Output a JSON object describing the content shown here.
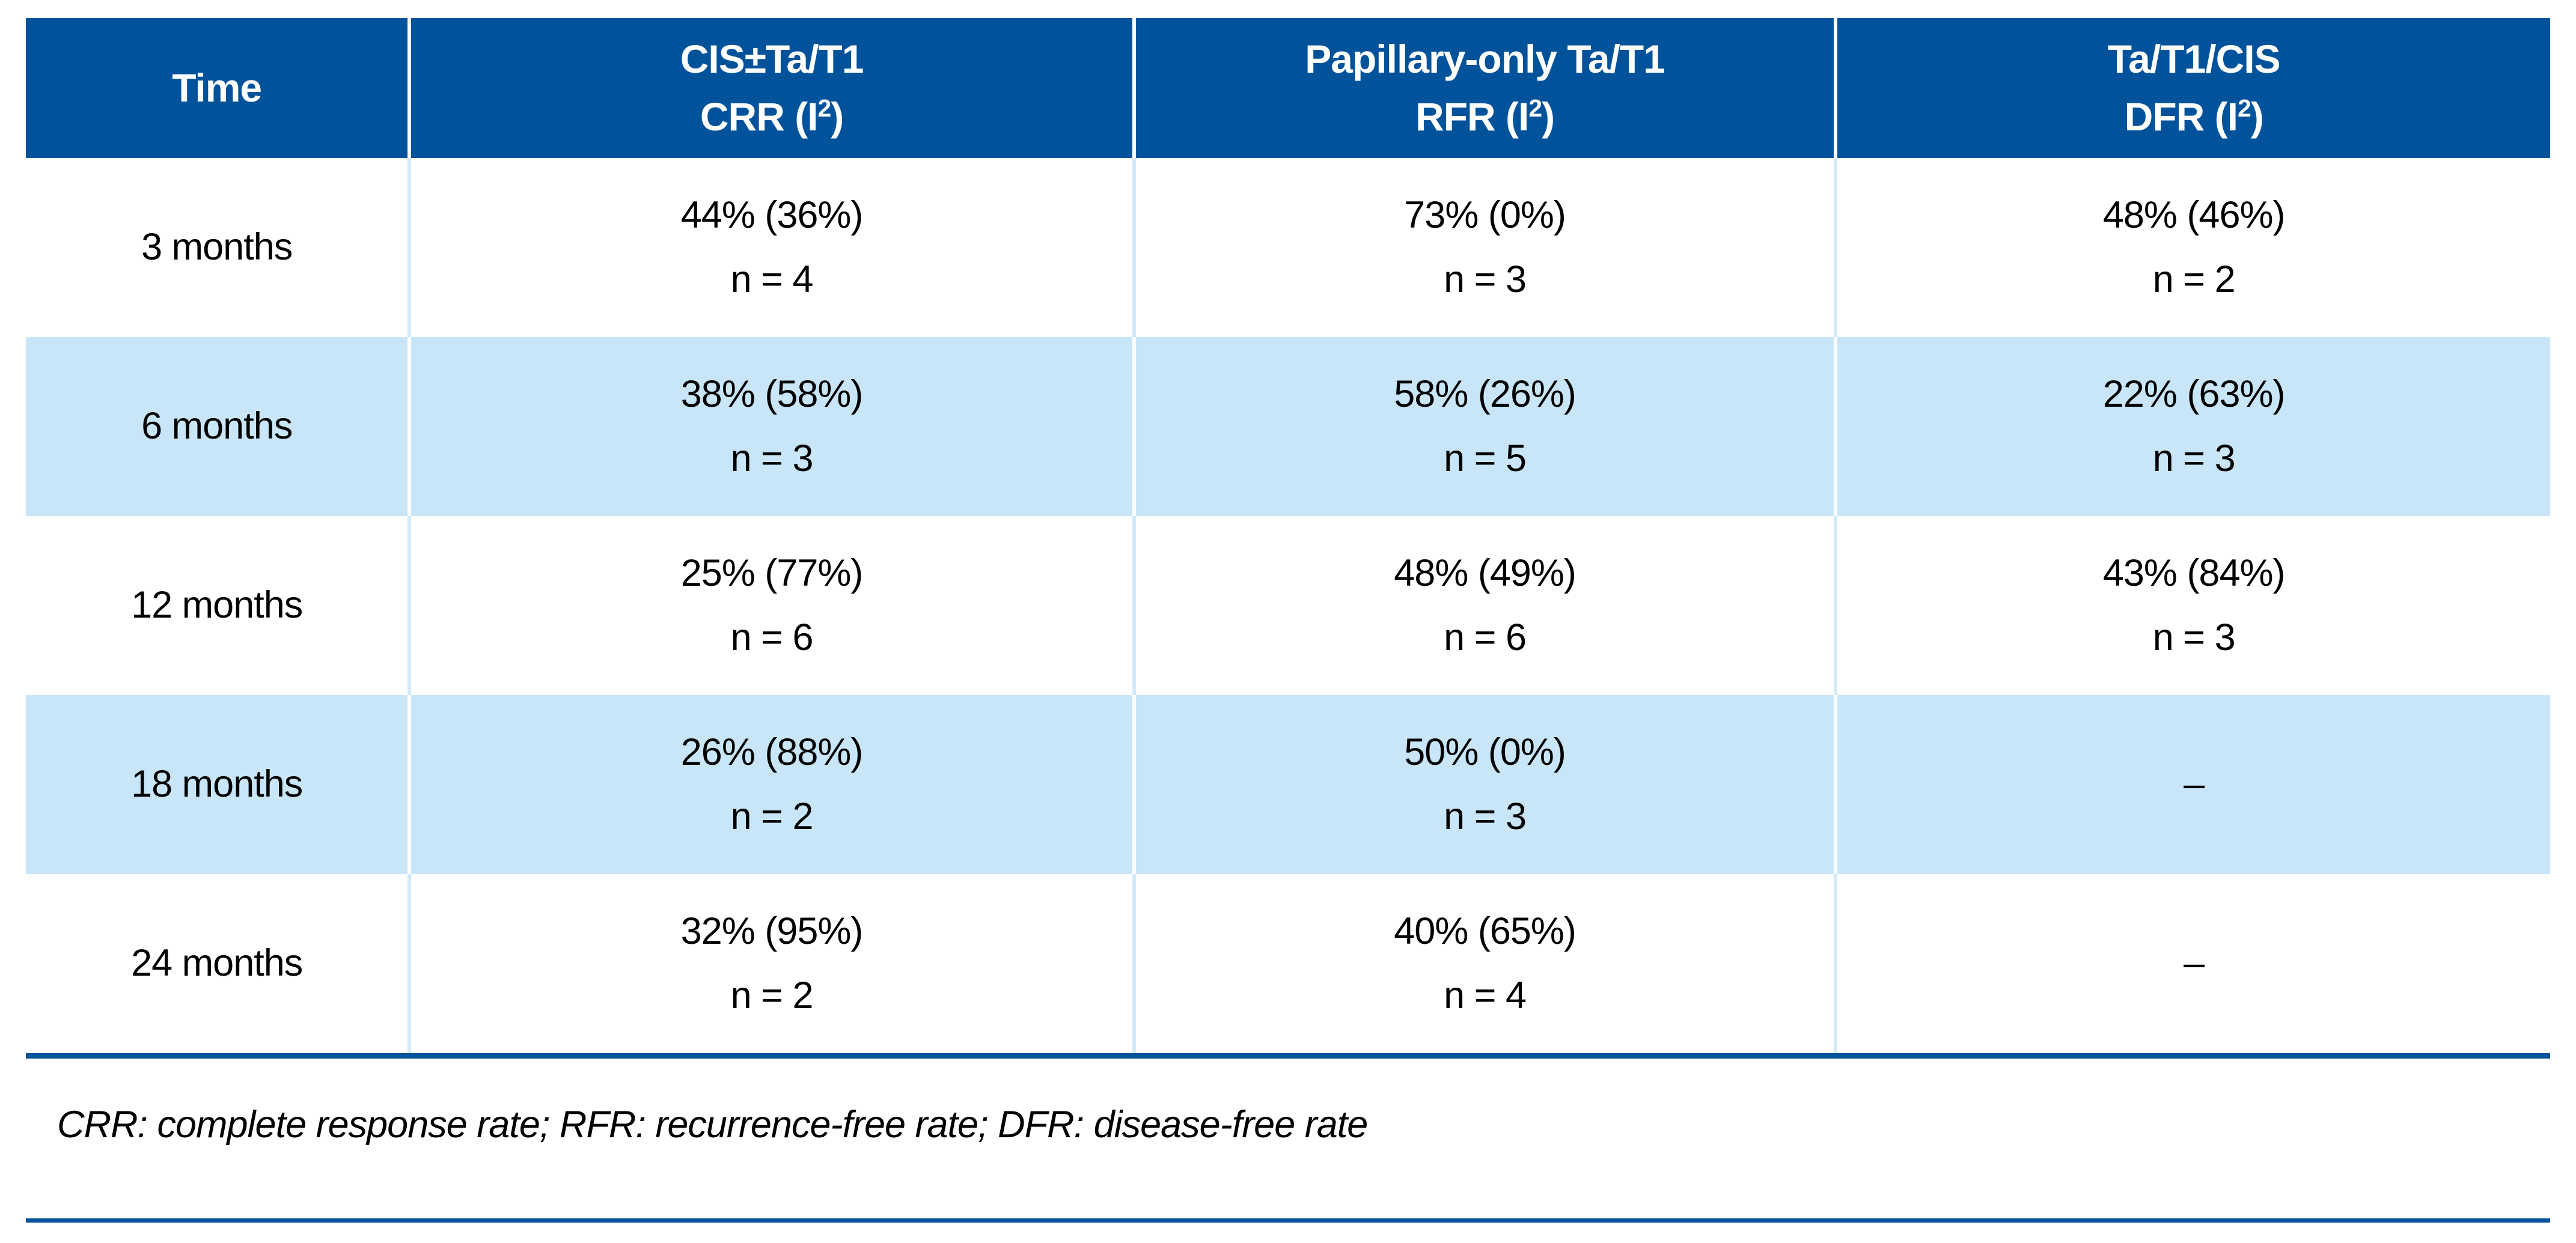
{
  "colors": {
    "header_bg": "#00539B",
    "header_text": "#FFFFFF",
    "stripe_row_bg": "#C8E6F8",
    "divider_on_white": "#D3EAF8",
    "divider_on_blue": "#FFFFFF",
    "rule": "#00539B",
    "body_text": "#000000"
  },
  "table": {
    "columns": [
      {
        "line1": "Time",
        "line2pre": "",
        "sup": "",
        "line2suf": ""
      },
      {
        "line1": "CIS±Ta/T1",
        "line2pre": "CRR (I",
        "sup": "2",
        "line2suf": ")"
      },
      {
        "line1": "Papillary-only Ta/T1",
        "line2pre": "RFR (I",
        "sup": "2",
        "line2suf": ")"
      },
      {
        "line1": "Ta/T1/CIS",
        "line2pre": "DFR (I",
        "sup": "2",
        "line2suf": ")"
      }
    ],
    "rows": [
      {
        "time": "3 months",
        "cells": [
          {
            "value": "44% (36%)",
            "n": "n = 4"
          },
          {
            "value": "73% (0%)",
            "n": "n = 3"
          },
          {
            "value": "48% (46%)",
            "n": "n = 2"
          }
        ]
      },
      {
        "time": "6 months",
        "cells": [
          {
            "value": "38% (58%)",
            "n": "n = 3"
          },
          {
            "value": "58% (26%)",
            "n": "n = 5"
          },
          {
            "value": "22% (63%)",
            "n": "n = 3"
          }
        ]
      },
      {
        "time": "12 months",
        "cells": [
          {
            "value": "25% (77%)",
            "n": "n = 6"
          },
          {
            "value": "48% (49%)",
            "n": "n = 6"
          },
          {
            "value": "43% (84%)",
            "n": "n = 3"
          }
        ]
      },
      {
        "time": "18 months",
        "cells": [
          {
            "value": "26% (88%)",
            "n": "n = 2"
          },
          {
            "value": "50% (0%)",
            "n": "n = 3"
          },
          {
            "value": "–",
            "n": ""
          }
        ]
      },
      {
        "time": "24 months",
        "cells": [
          {
            "value": "32% (95%)",
            "n": "n = 2"
          },
          {
            "value": "40% (65%)",
            "n": "n = 4"
          },
          {
            "value": "–",
            "n": ""
          }
        ]
      }
    ]
  },
  "footnote": "CRR: complete response rate; RFR: recurrence-free rate; DFR: disease-free rate"
}
